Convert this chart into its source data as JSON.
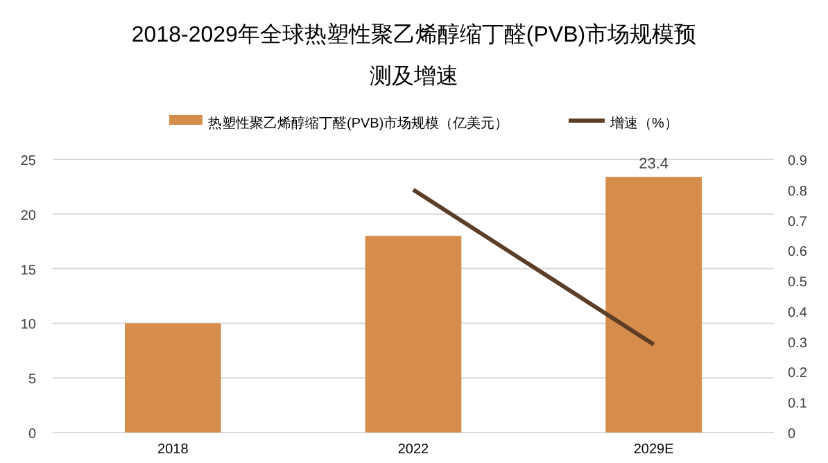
{
  "chart_data": {
    "type": "bar",
    "title": "2018-2029年全球热塑性聚乙烯醇缩丁醛(PVB)市场规模预测及增速",
    "categories": [
      "2018",
      "2022",
      "2029E"
    ],
    "series": [
      {
        "name": "热塑性聚乙烯醇缩丁醛(PVB)市场规模（亿美元）",
        "color": "#d68c4a",
        "values": [
          10,
          18,
          23.4
        ],
        "value_labels": [
          null,
          null,
          "23.4"
        ]
      },
      {
        "name": "增速（%）",
        "type": "line",
        "axis": "y2",
        "color": "#5c3d26",
        "values": [
          null,
          0.8,
          0.29
        ]
      }
    ],
    "ylim": [
      0,
      25
    ],
    "yticks": [
      0,
      5,
      10,
      15,
      20,
      25
    ],
    "y2lim": [
      0,
      0.9
    ],
    "y2ticks": [
      0,
      0.1,
      0.2,
      0.3,
      0.4,
      0.5,
      0.6,
      0.7,
      0.8,
      0.9
    ],
    "grid": "y",
    "legend": "top"
  }
}
